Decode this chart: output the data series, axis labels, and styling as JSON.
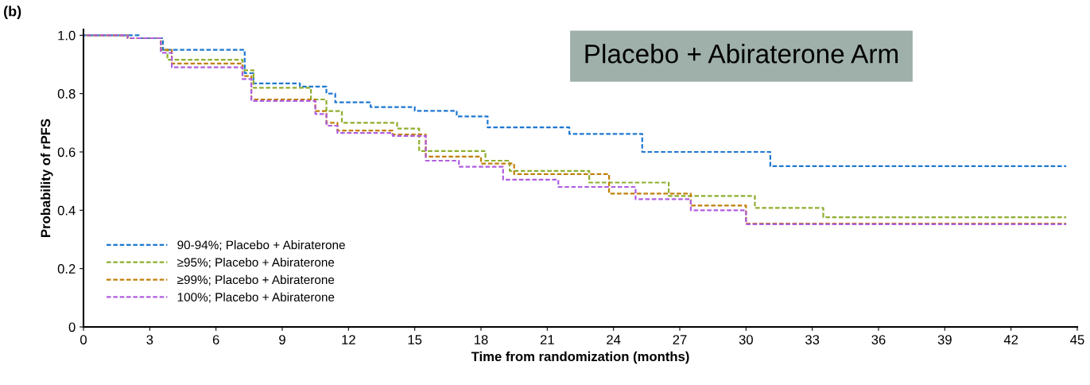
{
  "chart_data": {
    "type": "step",
    "title": "Placebo + Abiraterone Arm",
    "xlabel": "Time from randomization (months)",
    "ylabel": "Probability of rPFS",
    "annotations": [
      "(b)"
    ],
    "xlim": [
      0,
      45
    ],
    "xticks": [
      0,
      3,
      6,
      9,
      12,
      15,
      18,
      21,
      24,
      27,
      30,
      33,
      36,
      39,
      42,
      45
    ],
    "ylim": [
      0,
      1.02
    ],
    "yticks": [
      0,
      0.2,
      0.4,
      0.6,
      0.8,
      {
        "value": 1,
        "label": "1.0"
      }
    ],
    "grid": false,
    "legend": "lower left",
    "line_style": "dashed",
    "series": [
      {
        "name": "90-94%; Placebo + Abiraterone",
        "color": "#1f78d1",
        "x": [
          0,
          2.5,
          3.6,
          7.3,
          7.7,
          9.8,
          11.0,
          11.4,
          13.0,
          15.0,
          16.9,
          18.3,
          22.0,
          25.3,
          31.1,
          44.5
        ],
        "values": [
          1.0,
          0.99,
          0.95,
          0.87,
          0.835,
          0.824,
          0.8,
          0.77,
          0.754,
          0.741,
          0.722,
          0.684,
          0.662,
          0.6,
          0.551,
          0.551
        ]
      },
      {
        "name": "≥95%; Placebo + Abiraterone",
        "color": "#8fae2f",
        "x": [
          0,
          2.0,
          3.5,
          3.8,
          7.2,
          7.7,
          10.3,
          11.0,
          11.7,
          14.2,
          15.2,
          18.2,
          19.3,
          22.9,
          26.5,
          30.4,
          33.5,
          44.5
        ],
        "values": [
          1.0,
          0.99,
          0.95,
          0.916,
          0.88,
          0.82,
          0.78,
          0.74,
          0.7,
          0.68,
          0.603,
          0.57,
          0.535,
          0.495,
          0.449,
          0.408,
          0.376,
          0.376
        ]
      },
      {
        "name": "≥99%; Placebo + Abiraterone",
        "color": "#c0800a",
        "x": [
          0,
          2.0,
          3.5,
          4.0,
          7.2,
          7.6,
          10.5,
          11.0,
          11.5,
          14.0,
          15.5,
          18.0,
          19.5,
          23.8,
          27.5,
          30.0,
          44.5
        ],
        "values": [
          1.0,
          0.99,
          0.95,
          0.903,
          0.86,
          0.78,
          0.74,
          0.7,
          0.673,
          0.66,
          0.584,
          0.56,
          0.524,
          0.457,
          0.416,
          0.354,
          0.354
        ]
      },
      {
        "name": "100%; Placebo + Abiraterone",
        "color": "#b05ee0",
        "x": [
          0,
          2.0,
          3.5,
          4.0,
          7.2,
          7.6,
          10.5,
          11.0,
          11.5,
          14.0,
          15.5,
          17.0,
          19.0,
          21.5,
          25.0,
          27.5,
          30.0,
          44.5
        ],
        "values": [
          1.0,
          0.99,
          0.94,
          0.89,
          0.85,
          0.775,
          0.73,
          0.69,
          0.665,
          0.655,
          0.57,
          0.549,
          0.505,
          0.48,
          0.438,
          0.4,
          0.352,
          0.352
        ]
      }
    ]
  }
}
